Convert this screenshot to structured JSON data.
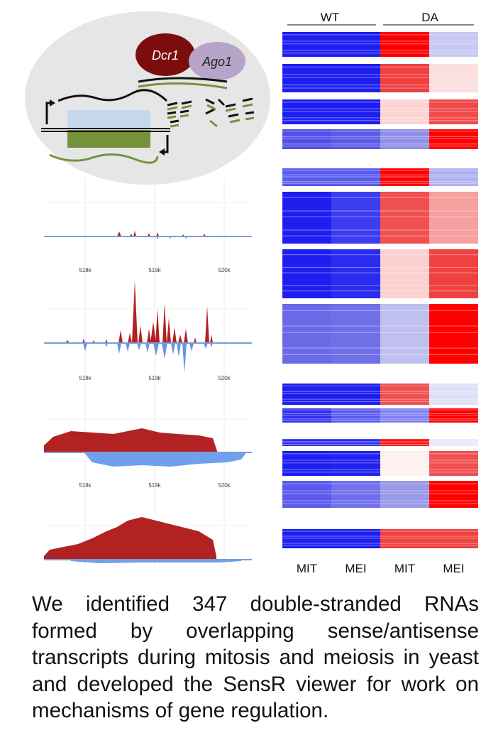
{
  "diagram": {
    "dcr1": "Dcr1",
    "ago1": "Ago1"
  },
  "tracks": [
    {
      "ticks": [
        "518k",
        "519k",
        "520k"
      ]
    },
    {
      "ticks": [
        "518k",
        "519k",
        "520k"
      ]
    },
    {
      "ticks": [
        "518k",
        "519k",
        "520k"
      ]
    }
  ],
  "heatmap": {
    "groups": [
      "WT",
      "DA"
    ],
    "columns": [
      "MIT",
      "MEI",
      "MIT",
      "MEI"
    ]
  },
  "caption": "We identified 347 double-stranded RNAs formed by overlapping sense/antisense transcripts during mitosis and meiosis in yeast and developed the SensR viewer for work on mechanisms of gene regulation."
}
